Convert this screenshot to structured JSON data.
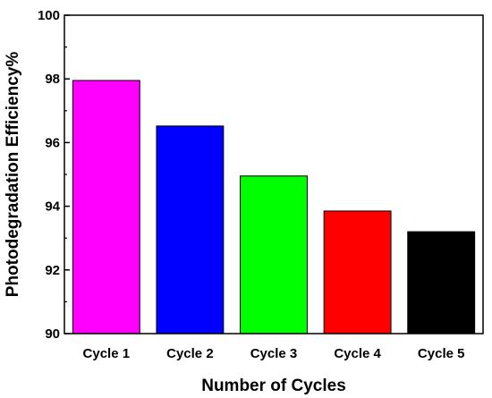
{
  "chart_data": {
    "type": "bar",
    "categories": [
      "Cycle 1",
      "Cycle 2",
      "Cycle 3",
      "Cycle 4",
      "Cycle 5"
    ],
    "values": [
      97.95,
      96.52,
      94.95,
      93.85,
      93.2
    ],
    "colors": [
      "#ff00ff",
      "#0000ff",
      "#00ff00",
      "#ff0000",
      "#000000"
    ],
    "xlabel": "Number of Cycles",
    "ylabel": "Photodegradation Efficiency%",
    "ylim": [
      90,
      100
    ],
    "yticks": [
      "90",
      "92",
      "94",
      "96",
      "98",
      "100"
    ],
    "grid": false
  }
}
